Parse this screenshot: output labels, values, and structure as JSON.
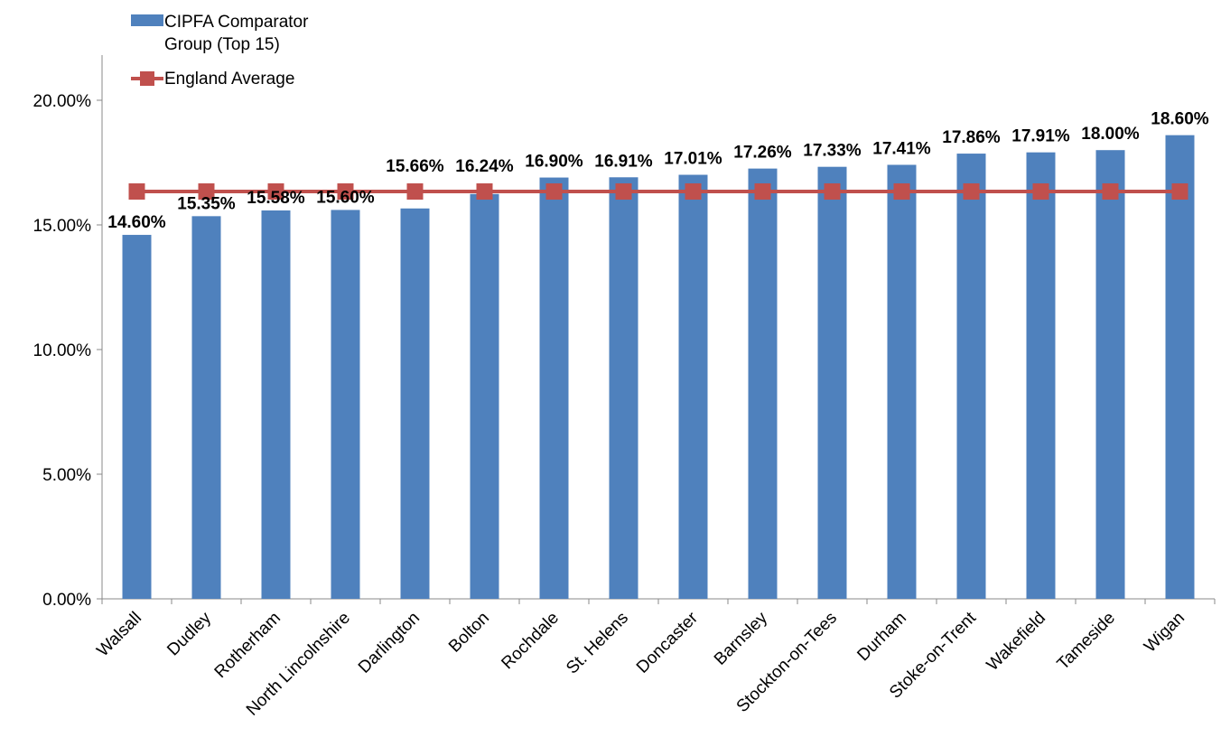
{
  "chart_data": {
    "type": "bar",
    "categories": [
      "Walsall",
      "Dudley",
      "Rotherham",
      "North Lincolnshire",
      "Darlington",
      "Bolton",
      "Rochdale",
      "St. Helens",
      "Doncaster",
      "Barnsley",
      "Stockton-on-Tees",
      "Durham",
      "Stoke-on-Trent",
      "Wakefield",
      "Tameside",
      "Wigan"
    ],
    "series": [
      {
        "name": "CIPFA Comparator Group (Top 15)",
        "type": "bar",
        "color": "#4f81bd",
        "values": [
          14.6,
          15.35,
          15.58,
          15.6,
          15.66,
          16.24,
          16.9,
          16.91,
          17.01,
          17.26,
          17.33,
          17.41,
          17.86,
          17.91,
          18.0,
          18.6
        ],
        "value_labels": [
          "14.60%",
          "15.35%",
          "15.58%",
          "15.60%",
          "15.66%",
          "16.24%",
          "16.90%",
          "16.91%",
          "17.01%",
          "17.26%",
          "17.33%",
          "17.41%",
          "17.86%",
          "17.91%",
          "18.00%",
          "18.60%"
        ]
      },
      {
        "name": "England Average",
        "type": "line",
        "color": "#c0504d",
        "values": [
          16.34,
          16.34,
          16.34,
          16.34,
          16.34,
          16.34,
          16.34,
          16.34,
          16.34,
          16.34,
          16.34,
          16.34,
          16.34,
          16.34,
          16.34,
          16.34
        ]
      }
    ],
    "ylim": [
      0,
      20
    ],
    "yticks": [
      {
        "value": 0,
        "label": "0.00%"
      },
      {
        "value": 5,
        "label": "5.00%"
      },
      {
        "value": 10,
        "label": "10.00%"
      },
      {
        "value": 15,
        "label": "15.00%"
      },
      {
        "value": 20,
        "label": "20.00%"
      }
    ],
    "grid": false,
    "legend": "top-left"
  }
}
